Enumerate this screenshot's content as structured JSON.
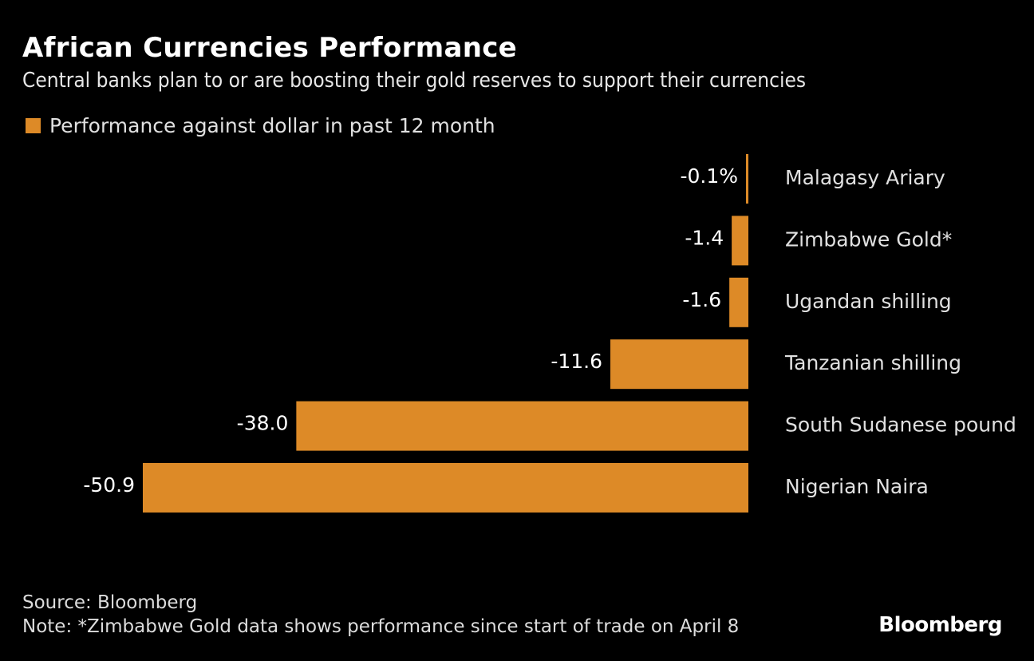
{
  "header": {
    "title": "African Currencies Performance",
    "subtitle": "Central banks plan to or are boosting their gold reserves to support their currencies"
  },
  "legend": {
    "label": "Performance against dollar in past 12 month",
    "color": "#dd8a27"
  },
  "chart_data": {
    "type": "bar",
    "orientation": "horizontal",
    "title": "African Currencies Performance",
    "subtitle": "Central banks plan to or are boosting their gold reserves to support their currencies",
    "xlabel": "",
    "ylabel": "",
    "unit": "%",
    "categories": [
      "Malagasy Ariary",
      "Zimbabwe Gold*",
      "Ugandan shilling",
      "Tanzanian shilling",
      "South Sudanese pound",
      "Nigerian Naira"
    ],
    "series": [
      {
        "name": "Performance against dollar in past 12 month",
        "color": "#dd8a27",
        "values": [
          -0.1,
          -1.4,
          -1.6,
          -11.6,
          -38.0,
          -50.9
        ]
      }
    ],
    "data_labels": [
      "-0.1%",
      "-1.4",
      "-1.6",
      "-11.6",
      "-38.0",
      "-50.9"
    ],
    "xlim": [
      -50.9,
      0
    ],
    "grid": false,
    "legend_position": "top-left"
  },
  "footer": {
    "source": "Source: Bloomberg",
    "note": "Note: *Zimbabwe Gold data shows performance since start of trade on April 8",
    "brand": "Bloomberg"
  }
}
